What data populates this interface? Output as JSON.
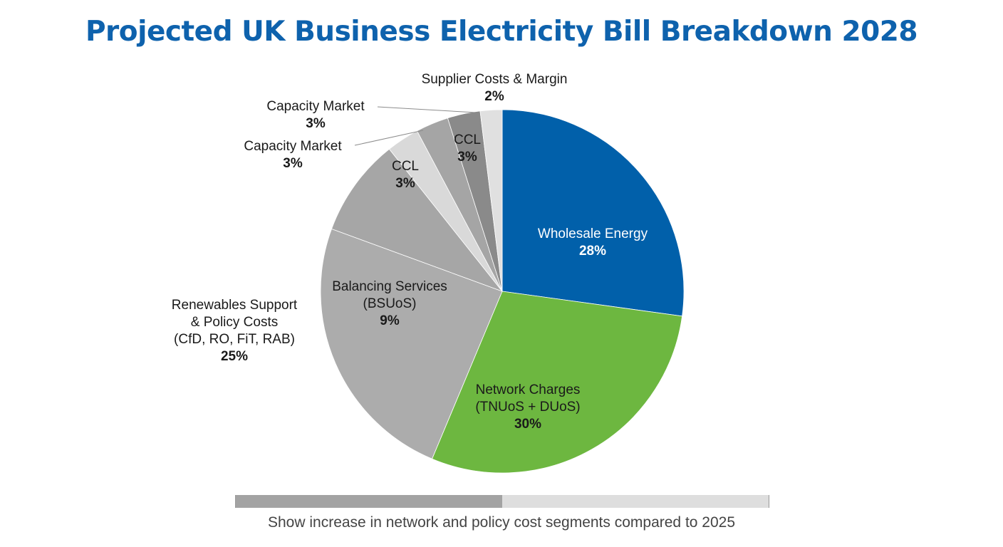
{
  "page": {
    "footnote": "Show increase in network and policy cost segments compared to 2025",
    "progress": 0.5
  },
  "colors": {
    "title": "#0e62ad",
    "wholesale": "#0160aa",
    "network": "#6db740",
    "renewables": "#acacac",
    "balancing": "#a6a6a6",
    "ccl_light": "#d9d9d9",
    "capacity": "#a5a5a5",
    "ccl_dark": "#8a8a8a",
    "supplier": "#e0e0e0",
    "progress_fill": "#a3a3a3",
    "progress_track": "#dedede"
  },
  "chart_data": {
    "type": "pie",
    "title": "Projected UK Business Electricity Bill Breakdown 2028",
    "start": "12 o'clock, clockwise",
    "slices": [
      {
        "key": "wholesale",
        "label_lines": [
          "Wholesale Energy"
        ],
        "pct_label": "28%",
        "value": 28,
        "color": "#0160aa",
        "label_color": "#ffffff",
        "label_placement": "inside"
      },
      {
        "key": "network",
        "label_lines": [
          "Network Charges",
          "(TNUoS + DUoS)"
        ],
        "pct_label": "30%",
        "value": 30,
        "color": "#6db740",
        "label_color": "#1a1a1a",
        "label_placement": "inside"
      },
      {
        "key": "renewables",
        "label_lines": [
          "Renewables Support",
          "& Policy Costs",
          "(CfD, RO, FiT, RAB)"
        ],
        "pct_label": "25%",
        "value": 25,
        "color": "#acacac",
        "label_color": "#1a1a1a",
        "label_placement": "outside-left"
      },
      {
        "key": "balancing",
        "label_lines": [
          "Balancing Services",
          "(BSUoS)"
        ],
        "pct_label": "9%",
        "value": 9,
        "color": "#a6a6a6",
        "label_color": "#1a1a1a",
        "label_placement": "inside"
      },
      {
        "key": "ccl_light",
        "label_lines": [
          "CCL"
        ],
        "pct_label": "3%",
        "value": 3,
        "color": "#d9d9d9",
        "label_color": "#1a1a1a",
        "label_placement": "inside"
      },
      {
        "key": "capacity_a",
        "label_lines": [
          "Capacity Market"
        ],
        "pct_label": "3%",
        "value": 3,
        "color": "#a5a5a5",
        "label_color": "#1a1a1a",
        "label_placement": "outside-leader"
      },
      {
        "key": "ccl_dark",
        "label_lines": [
          "CCL"
        ],
        "pct_label": "3%",
        "value": 3,
        "color": "#8a8a8a",
        "label_color": "#1a1a1a",
        "label_placement": "inside"
      },
      {
        "key": "supplier",
        "label_lines": [
          "Supplier Costs & Margin"
        ],
        "pct_label": "2%",
        "value": 2,
        "color": "#e0e0e0",
        "label_color": "#1a1a1a",
        "label_placement": "outside-top"
      }
    ],
    "extra_labels": [
      {
        "key": "capacity_b",
        "label_lines": [
          "Capacity Market"
        ],
        "pct_label": "3%",
        "label_color": "#1a1a1a",
        "label_placement": "outside-leader"
      }
    ]
  }
}
